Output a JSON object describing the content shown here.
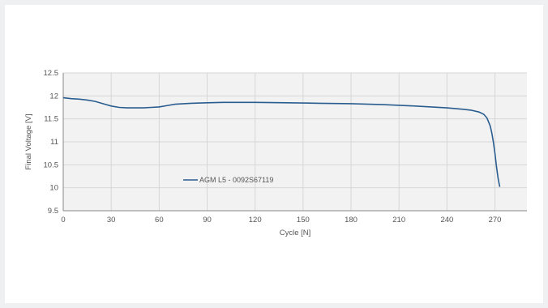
{
  "chart_data": {
    "type": "line",
    "title": "",
    "xlabel": "Cycle [N]",
    "ylabel": "Final Voltage [V]",
    "xlim": [
      0,
      290
    ],
    "ylim": [
      9.5,
      12.5
    ],
    "xticks": [
      0,
      30,
      60,
      90,
      120,
      150,
      180,
      210,
      240,
      270
    ],
    "xtick_labels": [
      "0",
      "30",
      "60",
      "90",
      "120",
      "150",
      "180",
      "210",
      "240",
      "270"
    ],
    "yticks": [
      9.5,
      10,
      10.5,
      11,
      11.5,
      12,
      12.5
    ],
    "ytick_labels": [
      "9.5",
      "10",
      "10.5",
      "11",
      "11.5",
      "12",
      "12.5"
    ],
    "grid": true,
    "legend_position": "inside-left",
    "series": [
      {
        "name": "AGM L5 - 0092S67119",
        "color": "#2a5d8f",
        "x": [
          0,
          5,
          10,
          15,
          20,
          25,
          30,
          35,
          40,
          45,
          50,
          55,
          60,
          65,
          70,
          80,
          90,
          100,
          120,
          140,
          160,
          180,
          200,
          220,
          240,
          250,
          255,
          260,
          263,
          265,
          267,
          268,
          269,
          270,
          271,
          272,
          273
        ],
        "y": [
          11.96,
          11.94,
          11.93,
          11.91,
          11.88,
          11.83,
          11.78,
          11.75,
          11.74,
          11.74,
          11.74,
          11.75,
          11.76,
          11.79,
          11.82,
          11.84,
          11.85,
          11.86,
          11.86,
          11.85,
          11.84,
          11.83,
          11.81,
          11.78,
          11.74,
          11.71,
          11.69,
          11.65,
          11.6,
          11.52,
          11.35,
          11.2,
          11.0,
          10.75,
          10.45,
          10.2,
          10.02
        ]
      }
    ]
  }
}
